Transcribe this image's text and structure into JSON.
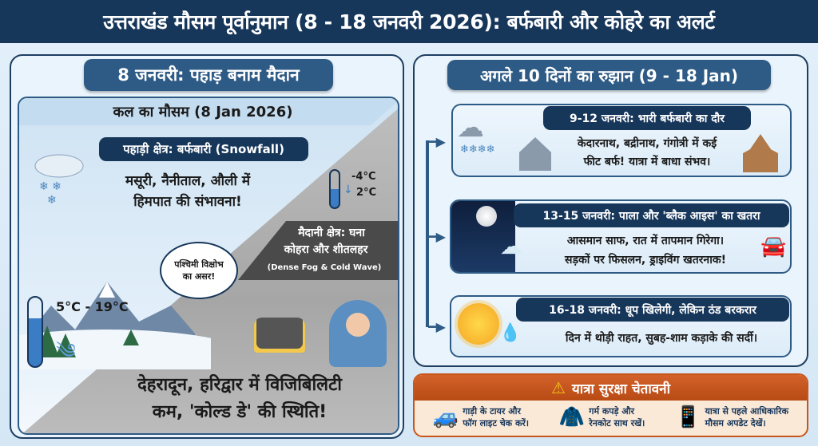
{
  "header": {
    "title": "उत्तराखंड मौसम पूर्वानुमान (8 - 18 जनवरी 2026): बर्फबारी और कोहरे का अलर्ट"
  },
  "left": {
    "title": "8 जनवरी: पहाड़ बनाम मैदान",
    "subtitle": "कल का मौसम (8 Jan 2026)",
    "hills": {
      "label": "पहाड़ी क्षेत्र: बर्फबारी (Snowfall)",
      "text_line1": "मसूरी, नैनीताल, औली में",
      "text_line2": "हिमपात की संभावना!",
      "temp_high": "-4°C",
      "temp_low": "2°C"
    },
    "bubble": {
      "line1": "पश्चिमी विक्षोभ",
      "line2": "का असर!"
    },
    "plains": {
      "label_line1": "मैदानी क्षेत्र: घना",
      "label_line2": "कोहरा और शीतलहर",
      "label_en": "(Dense Fog & Cold Wave)",
      "temp_range": "5°C - 19°C",
      "text_line1": "देहरादून, हरिद्वार में विजिबिलिटी",
      "text_line2": "कम, 'कोल्ड डे' की स्थिति!"
    }
  },
  "right": {
    "title": "अगले 10 दिनों का रुझान (9 - 18 Jan)",
    "cards": [
      {
        "heading": "9-12 जनवरी: भारी बर्फबारी का दौर",
        "line1": "केदारनाथ, बद्रीनाथ, गंगोत्री में कई",
        "line2": "फीट बर्फ! यात्रा में बाधा संभव।",
        "icon": "snow-cloud"
      },
      {
        "heading": "13-15 जनवरी: पाला और 'ब्लैक आइस' का खतरा",
        "line1": "आसमान साफ, रात में तापमान गिरेगा।",
        "line2": "सड़कों पर फिसलन, ड्राइविंग खतरनाक!",
        "icon": "moon"
      },
      {
        "heading": "16-18 जनवरी: धूप खिलेगी, लेकिन ठंड बरकरार",
        "line1": "दिन में थोड़ी राहत, सुबह-शाम कड़ाके की सर्दी।",
        "icon": "sun"
      }
    ]
  },
  "alert": {
    "title": "यात्रा सुरक्षा चेतावनी",
    "tips": [
      {
        "line1": "गाड़ी के टायर और",
        "line2": "फॉग लाइट चेक करें।"
      },
      {
        "line1": "गर्म कपड़े और",
        "line2": "रेनकोट साथ रखें।"
      },
      {
        "line1": "यात्रा से पहले आधिकारिक",
        "line2": "मौसम अपडेट देखें।"
      }
    ]
  },
  "colors": {
    "navy": "#16365a",
    "accent": "#2e5b85",
    "alert": "#c8561a"
  }
}
